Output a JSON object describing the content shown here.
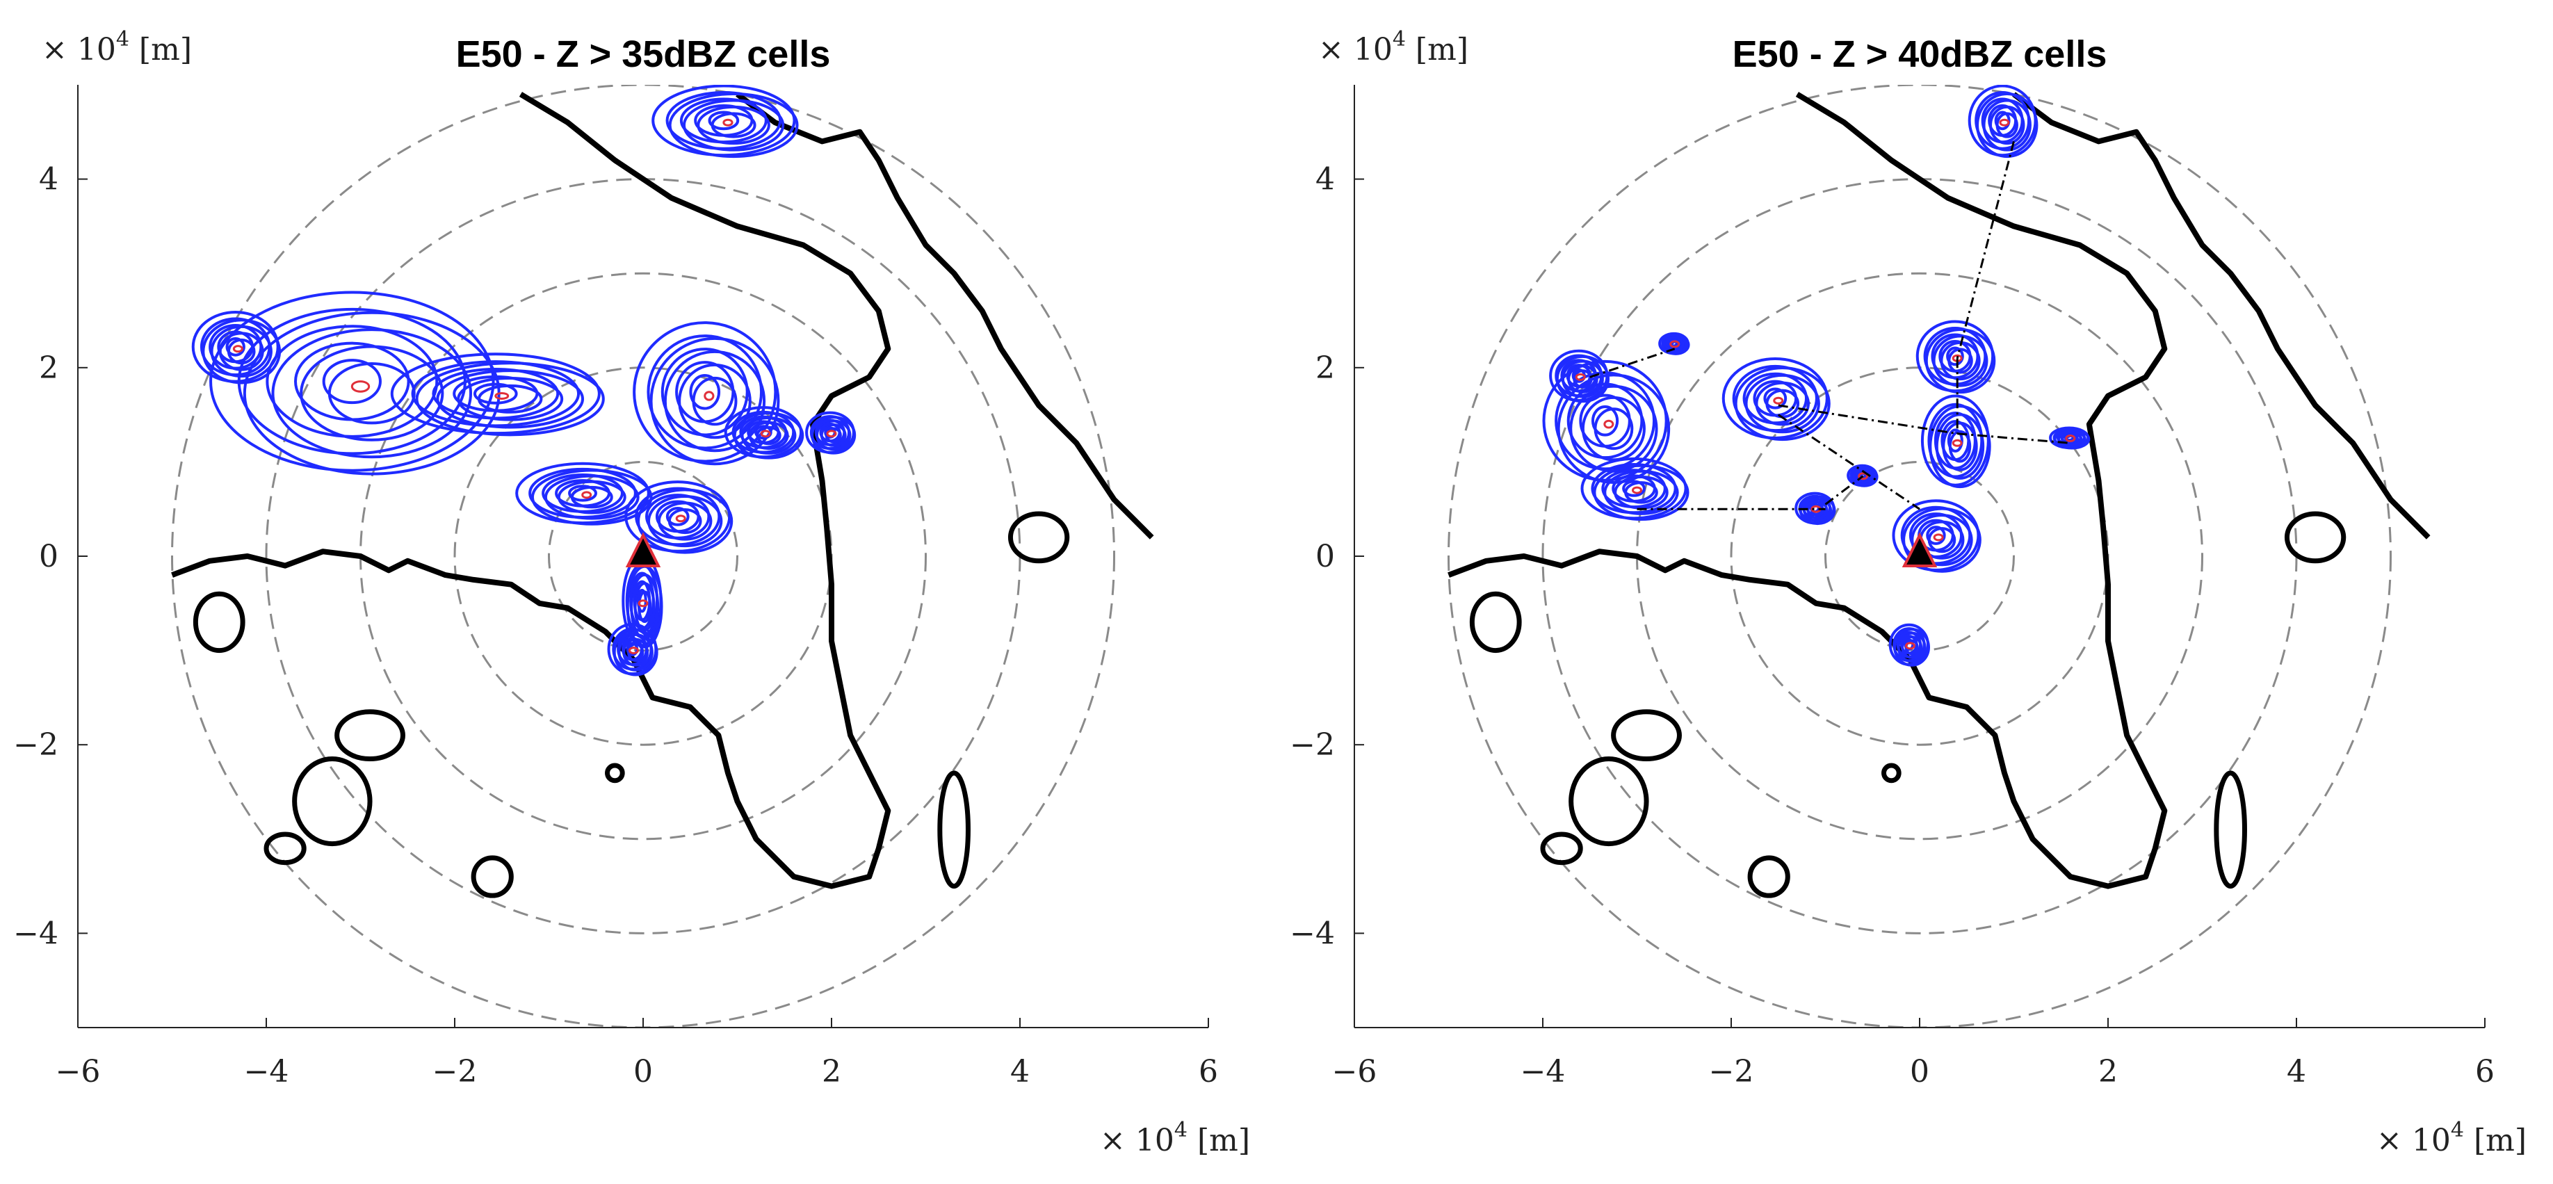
{
  "chart_data": [
    {
      "type": "scatter",
      "title": "E50 - Z > 35dBZ cells",
      "xlabel": "",
      "ylabel": "",
      "x_multiplier": "× 10",
      "x_multiplier_exp": "4",
      "x_unit": "[m]",
      "y_multiplier": "× 10",
      "y_multiplier_exp": "4",
      "y_unit": "[m]",
      "xlim": [
        -6,
        6
      ],
      "ylim": [
        -5,
        5
      ],
      "xticks": [
        "−6",
        "−4",
        "−2",
        "0",
        "2",
        "4",
        "6"
      ],
      "yticks": [
        "4",
        "2",
        "0",
        "−2",
        "−4"
      ],
      "range_rings": [
        1,
        2,
        3,
        4,
        5
      ],
      "radar_site": [
        0,
        0
      ],
      "cells": [
        {
          "x": -3.0,
          "y": 1.8,
          "rx": 1.5,
          "ry": 0.9
        },
        {
          "x": -1.5,
          "y": 1.7,
          "rx": 1.1,
          "ry": 0.4
        },
        {
          "x": -4.3,
          "y": 2.2,
          "rx": 0.45,
          "ry": 0.35
        },
        {
          "x": 0.7,
          "y": 1.7,
          "rx": 0.75,
          "ry": 0.7
        },
        {
          "x": 1.3,
          "y": 1.3,
          "rx": 0.4,
          "ry": 0.25
        },
        {
          "x": 2.0,
          "y": 1.3,
          "rx": 0.25,
          "ry": 0.2
        },
        {
          "x": -0.6,
          "y": 0.65,
          "rx": 0.7,
          "ry": 0.3
        },
        {
          "x": 0.4,
          "y": 0.4,
          "rx": 0.55,
          "ry": 0.35
        },
        {
          "x": 0.0,
          "y": -0.5,
          "rx": 0.2,
          "ry": 0.45
        },
        {
          "x": -0.1,
          "y": -1.0,
          "rx": 0.25,
          "ry": 0.25
        },
        {
          "x": 0.9,
          "y": 4.6,
          "rx": 0.75,
          "ry": 0.35
        }
      ],
      "tracks": []
    },
    {
      "type": "scatter",
      "title": "E50 - Z > 40dBZ cells",
      "xlabel": "",
      "ylabel": "",
      "x_multiplier": "× 10",
      "x_multiplier_exp": "4",
      "x_unit": "[m]",
      "y_multiplier": "× 10",
      "y_multiplier_exp": "4",
      "y_unit": "[m]",
      "xlim": [
        -6,
        6
      ],
      "ylim": [
        -5,
        5
      ],
      "xticks": [
        "−6",
        "−4",
        "−2",
        "0",
        "2",
        "4",
        "6"
      ],
      "yticks": [
        "4",
        "2",
        "0",
        "−2",
        "−4"
      ],
      "range_rings": [
        1,
        2,
        3,
        4,
        5
      ],
      "radar_site": [
        0,
        0
      ],
      "cells": [
        {
          "x": -3.3,
          "y": 1.4,
          "rx": 0.65,
          "ry": 0.6
        },
        {
          "x": -3.6,
          "y": 1.9,
          "rx": 0.3,
          "ry": 0.25
        },
        {
          "x": -3.0,
          "y": 0.7,
          "rx": 0.55,
          "ry": 0.3
        },
        {
          "x": -1.5,
          "y": 1.65,
          "rx": 0.55,
          "ry": 0.4
        },
        {
          "x": -2.6,
          "y": 2.25,
          "rx": 0.15,
          "ry": 0.1
        },
        {
          "x": -1.1,
          "y": 0.5,
          "rx": 0.2,
          "ry": 0.15
        },
        {
          "x": -0.6,
          "y": 0.85,
          "rx": 0.15,
          "ry": 0.1
        },
        {
          "x": 0.4,
          "y": 2.1,
          "rx": 0.4,
          "ry": 0.35
        },
        {
          "x": 0.4,
          "y": 1.2,
          "rx": 0.35,
          "ry": 0.45
        },
        {
          "x": 0.2,
          "y": 0.2,
          "rx": 0.45,
          "ry": 0.35
        },
        {
          "x": 1.6,
          "y": 1.25,
          "rx": 0.2,
          "ry": 0.1
        },
        {
          "x": -0.1,
          "y": -0.95,
          "rx": 0.2,
          "ry": 0.2
        },
        {
          "x": 0.9,
          "y": 4.6,
          "rx": 0.35,
          "ry": 0.35
        }
      ],
      "tracks": [
        [
          [
            1.0,
            4.4
          ],
          [
            0.4,
            2.1
          ]
        ],
        [
          [
            0.4,
            2.1
          ],
          [
            0.4,
            1.3
          ]
        ],
        [
          [
            0.4,
            1.3
          ],
          [
            1.6,
            1.2
          ]
        ],
        [
          [
            -1.5,
            1.5
          ],
          [
            0.0,
            0.5
          ]
        ],
        [
          [
            -1.5,
            1.6
          ],
          [
            0.4,
            1.3
          ]
        ],
        [
          [
            -3.0,
            0.5
          ],
          [
            -1.0,
            0.5
          ]
        ],
        [
          [
            -3.5,
            1.9
          ],
          [
            -2.6,
            2.2
          ]
        ],
        [
          [
            -1.0,
            0.55
          ],
          [
            -0.6,
            0.85
          ]
        ]
      ]
    }
  ],
  "colors": {
    "cell_outline": "#1f2bff",
    "cell_core": "#e0303a",
    "coastline": "#000000",
    "range_ring": "#8a8a8a",
    "track": "#000000",
    "radar_site": "#000000"
  }
}
